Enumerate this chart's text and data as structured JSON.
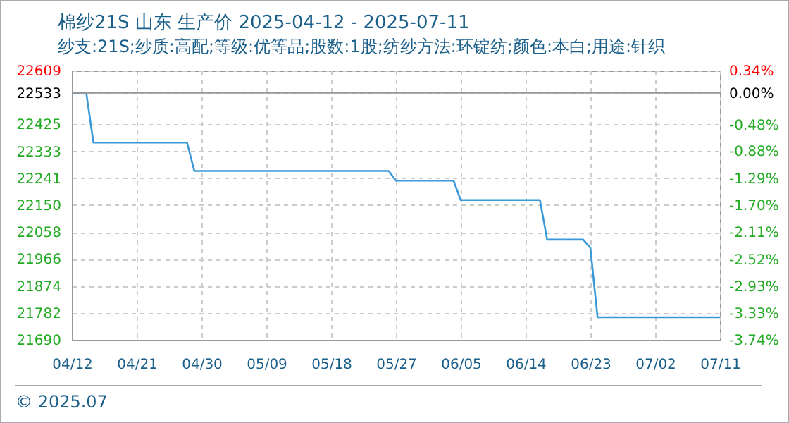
{
  "chart_data": {
    "type": "line",
    "title": "棉纱21S 山东 生产价 2025-04-12 - 2025-07-11",
    "subtitle": "纱支:21S;纱质:高配;等级:优等品;股数:1股;纺纱方法:环锭纺;颜色:本白;用途:针织",
    "x": [
      "2025-04-12",
      "2025-04-14",
      "2025-04-15",
      "2025-04-28",
      "2025-04-29",
      "2025-05-26",
      "2025-05-27",
      "2025-06-04",
      "2025-06-05",
      "2025-06-16",
      "2025-06-17",
      "2025-06-22",
      "2025-06-23",
      "2025-06-24",
      "2025-07-11"
    ],
    "series": [
      {
        "color": "#3a9ad9",
        "values": [
          22533,
          22533,
          22363,
          22363,
          22266,
          22266,
          22233,
          22233,
          22167,
          22167,
          22032,
          22032,
          22004,
          21767,
          21767
        ]
      }
    ],
    "xlim": [
      "2025-04-12",
      "2025-07-11"
    ],
    "xticks": [
      {
        "value": "2025-04-12",
        "label": "04/12"
      },
      {
        "value": "2025-04-21",
        "label": "04/21"
      },
      {
        "value": "2025-04-30",
        "label": "04/30"
      },
      {
        "value": "2025-05-09",
        "label": "05/09"
      },
      {
        "value": "2025-05-18",
        "label": "05/18"
      },
      {
        "value": "2025-05-27",
        "label": "05/27"
      },
      {
        "value": "2025-06-05",
        "label": "06/05"
      },
      {
        "value": "2025-06-14",
        "label": "06/14"
      },
      {
        "value": "2025-06-23",
        "label": "06/23"
      },
      {
        "value": "2025-07-02",
        "label": "07/02"
      },
      {
        "value": "2025-07-11",
        "label": "07/11"
      }
    ],
    "ylim": [
      21690,
      22609
    ],
    "yticks": [
      22609,
      22533,
      22425,
      22333,
      22241,
      22150,
      22058,
      21966,
      21874,
      21782,
      21690
    ],
    "y2lim": [
      -3.74,
      0.34
    ],
    "y2ticks": [
      {
        "value": 0.34,
        "label": "0.34%"
      },
      {
        "value": 0,
        "label": "0.00%"
      },
      {
        "value": -0.48,
        "label": "-0.48%"
      },
      {
        "value": -0.88,
        "label": "-0.88%"
      },
      {
        "value": -1.29,
        "label": "-1.29%"
      },
      {
        "value": -1.7,
        "label": "-1.70%"
      },
      {
        "value": -2.11,
        "label": "-2.11%"
      },
      {
        "value": -2.52,
        "label": "-2.52%"
      },
      {
        "value": -2.93,
        "label": "-2.93%"
      },
      {
        "value": -3.33,
        "label": "-3.33%"
      },
      {
        "value": -3.74,
        "label": "-3.74%"
      }
    ],
    "ref_lines": [
      {
        "axis": "y",
        "value": 22533,
        "color": "#999999"
      }
    ],
    "grid": true,
    "line_style": "solid",
    "annotations": [
      "© 2025.07"
    ]
  }
}
